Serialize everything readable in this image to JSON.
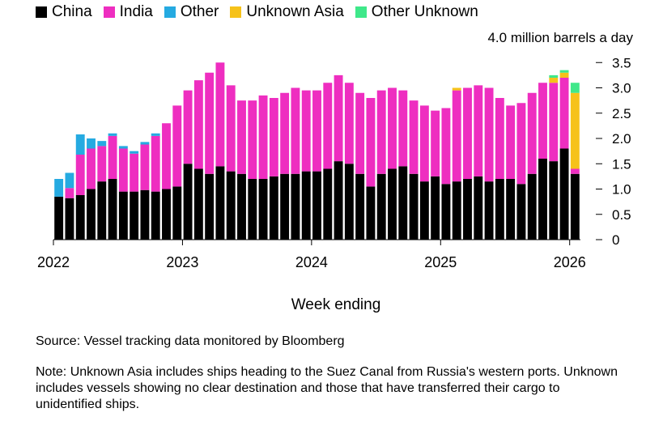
{
  "legend": {
    "items": [
      {
        "label": "China",
        "color": "#000000"
      },
      {
        "label": "India",
        "color": "#ee2ec0"
      },
      {
        "label": "Other",
        "color": "#25aae1"
      },
      {
        "label": "Unknown Asia",
        "color": "#f6c21a"
      },
      {
        "label": "Other Unknown",
        "color": "#3fe88a"
      }
    ]
  },
  "footer": {
    "xlabel": "Week ending",
    "source": "Source: Vessel tracking data monitored by Bloomberg",
    "note": "Note: Unknown Asia includes ships heading to the Suez Canal from Russia's western ports. Unknown includes vessels showing no clear destination and those that have transferred their cargo to unidentified ships."
  },
  "chart_data": {
    "type": "bar",
    "stacked": true,
    "unit_label": "4.0 million barrels a day",
    "ylim": [
      0,
      4.0
    ],
    "yticks": [
      "0",
      "0.5",
      "1.0",
      "1.5",
      "2.0",
      "2.5",
      "3.0",
      "3.5"
    ],
    "xticks": [
      "2022",
      "2023",
      "2024",
      "2025",
      "2026"
    ],
    "categories": [
      "2022-01",
      "2022-02",
      "2022-03",
      "2022-04",
      "2022-05",
      "2022-06",
      "2022-07",
      "2022-08",
      "2022-09",
      "2022-10",
      "2022-11",
      "2022-12",
      "2023-01",
      "2023-02",
      "2023-03",
      "2023-04",
      "2023-05",
      "2023-06",
      "2023-07",
      "2023-08",
      "2023-09",
      "2023-10",
      "2023-11",
      "2023-12",
      "2024-01",
      "2024-02",
      "2024-03",
      "2024-04",
      "2024-05",
      "2024-06",
      "2024-07",
      "2024-08",
      "2024-09",
      "2024-10",
      "2024-11",
      "2024-12",
      "2025-01",
      "2025-02",
      "2025-03",
      "2025-04",
      "2025-05",
      "2025-06",
      "2025-07",
      "2025-08",
      "2025-09",
      "2025-10",
      "2025-11",
      "2025-12",
      "2026-01"
    ],
    "series": [
      {
        "name": "China",
        "values": [
          0.85,
          0.82,
          0.88,
          1.0,
          1.15,
          1.2,
          0.95,
          0.95,
          0.98,
          0.95,
          1.0,
          1.05,
          1.5,
          1.4,
          1.3,
          1.45,
          1.35,
          1.3,
          1.2,
          1.2,
          1.25,
          1.3,
          1.3,
          1.35,
          1.35,
          1.4,
          1.55,
          1.5,
          1.3,
          1.05,
          1.3,
          1.4,
          1.45,
          1.3,
          1.15,
          1.25,
          1.1,
          1.15,
          1.2,
          1.25,
          1.15,
          1.2,
          1.2,
          1.1,
          1.3,
          1.6,
          1.55,
          1.8,
          1.3
        ]
      },
      {
        "name": "India",
        "values": [
          0.0,
          0.2,
          0.8,
          0.8,
          0.7,
          0.85,
          0.85,
          0.75,
          0.9,
          1.1,
          1.3,
          1.6,
          1.45,
          1.75,
          2.0,
          2.05,
          1.7,
          1.45,
          1.55,
          1.65,
          1.55,
          1.6,
          1.7,
          1.6,
          1.6,
          1.7,
          1.7,
          1.6,
          1.6,
          1.75,
          1.65,
          1.6,
          1.5,
          1.45,
          1.5,
          1.3,
          1.5,
          1.8,
          1.8,
          1.8,
          1.85,
          1.6,
          1.45,
          1.6,
          1.6,
          1.5,
          1.55,
          1.4,
          0.1
        ]
      },
      {
        "name": "Other",
        "values": [
          0.35,
          0.3,
          0.4,
          0.2,
          0.1,
          0.05,
          0.05,
          0.05,
          0.05,
          0.05,
          0.0,
          0.0,
          0.0,
          0.0,
          0.0,
          0.0,
          0.0,
          0.0,
          0.0,
          0.0,
          0.0,
          0.0,
          0.0,
          0.0,
          0.0,
          0.0,
          0.0,
          0.0,
          0.0,
          0.0,
          0.0,
          0.0,
          0.0,
          0.0,
          0.0,
          0.0,
          0.0,
          0.0,
          0.0,
          0.0,
          0.0,
          0.0,
          0.0,
          0.0,
          0.0,
          0.0,
          0.0,
          0.0,
          0.0
        ]
      },
      {
        "name": "Unknown Asia",
        "values": [
          0.0,
          0.0,
          0.0,
          0.0,
          0.0,
          0.0,
          0.0,
          0.0,
          0.0,
          0.0,
          0.0,
          0.0,
          0.0,
          0.0,
          0.0,
          0.0,
          0.0,
          0.0,
          0.0,
          0.0,
          0.0,
          0.0,
          0.0,
          0.0,
          0.0,
          0.0,
          0.0,
          0.0,
          0.0,
          0.0,
          0.0,
          0.0,
          0.0,
          0.0,
          0.0,
          0.0,
          0.0,
          0.05,
          0.0,
          0.0,
          0.0,
          0.0,
          0.0,
          0.0,
          0.0,
          0.0,
          0.1,
          0.1,
          1.5
        ]
      },
      {
        "name": "Other Unknown",
        "values": [
          0.0,
          0.0,
          0.0,
          0.0,
          0.0,
          0.0,
          0.0,
          0.0,
          0.0,
          0.0,
          0.0,
          0.0,
          0.0,
          0.0,
          0.0,
          0.0,
          0.0,
          0.0,
          0.0,
          0.0,
          0.0,
          0.0,
          0.0,
          0.0,
          0.0,
          0.0,
          0.0,
          0.0,
          0.0,
          0.0,
          0.0,
          0.0,
          0.0,
          0.0,
          0.0,
          0.0,
          0.0,
          0.0,
          0.0,
          0.0,
          0.0,
          0.0,
          0.0,
          0.0,
          0.0,
          0.0,
          0.05,
          0.05,
          0.2
        ]
      }
    ]
  }
}
